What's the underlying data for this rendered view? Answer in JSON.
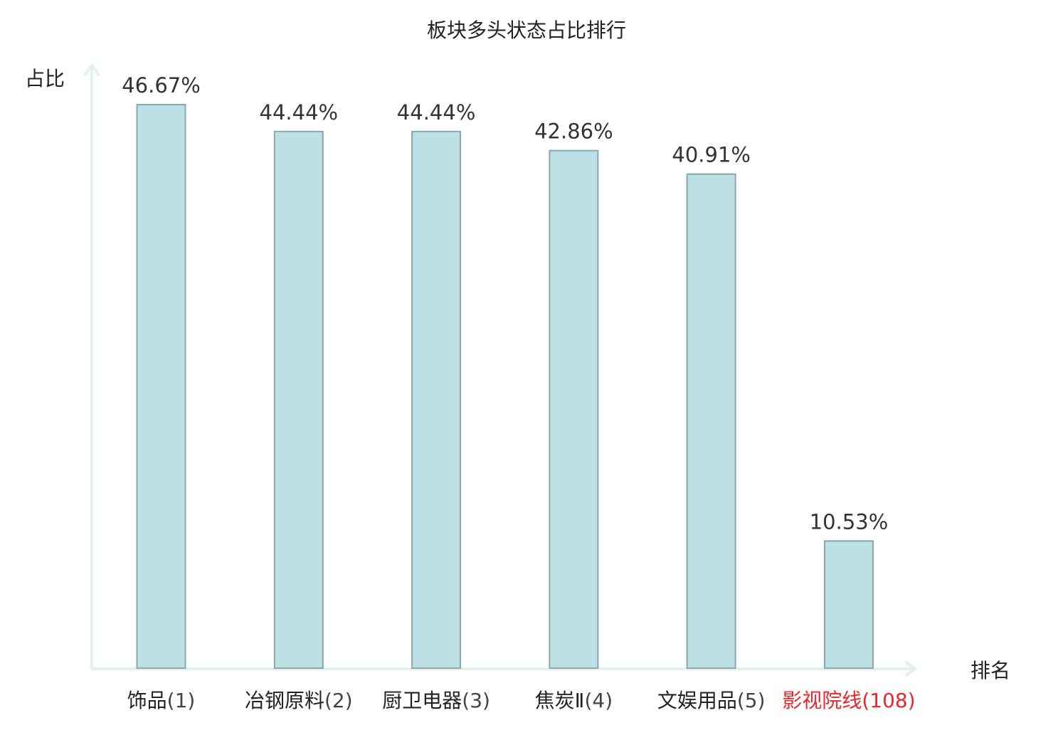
{
  "chart_data": {
    "type": "bar",
    "title": "板块多头状态占比排行",
    "xlabel": "排名",
    "ylabel": "占比",
    "categories": [
      "饰品",
      "冶钢原料",
      "厨卫电器",
      "焦炭Ⅱ",
      "文娱用品",
      "影视院线"
    ],
    "ranks": [
      "(1)",
      "(2)",
      "(3)",
      "(4)",
      "(5)",
      "(108)"
    ],
    "values": [
      46.67,
      44.44,
      44.44,
      42.86,
      40.91,
      10.53
    ],
    "value_labels": [
      "46.67%",
      "44.44%",
      "44.44%",
      "42.86%",
      "40.91%",
      "10.53%"
    ],
    "highlight_index": 5,
    "ylim": [
      0,
      46.67
    ],
    "grid": false,
    "legend": "none",
    "colors": {
      "bar_fill": "#bce0e3",
      "bar_stroke": "#8aa7a9",
      "axis": "#e0f2ef",
      "text": "#222222",
      "value_text": "#333333",
      "rank_text": "#444444",
      "highlight": "#e8262b"
    }
  }
}
